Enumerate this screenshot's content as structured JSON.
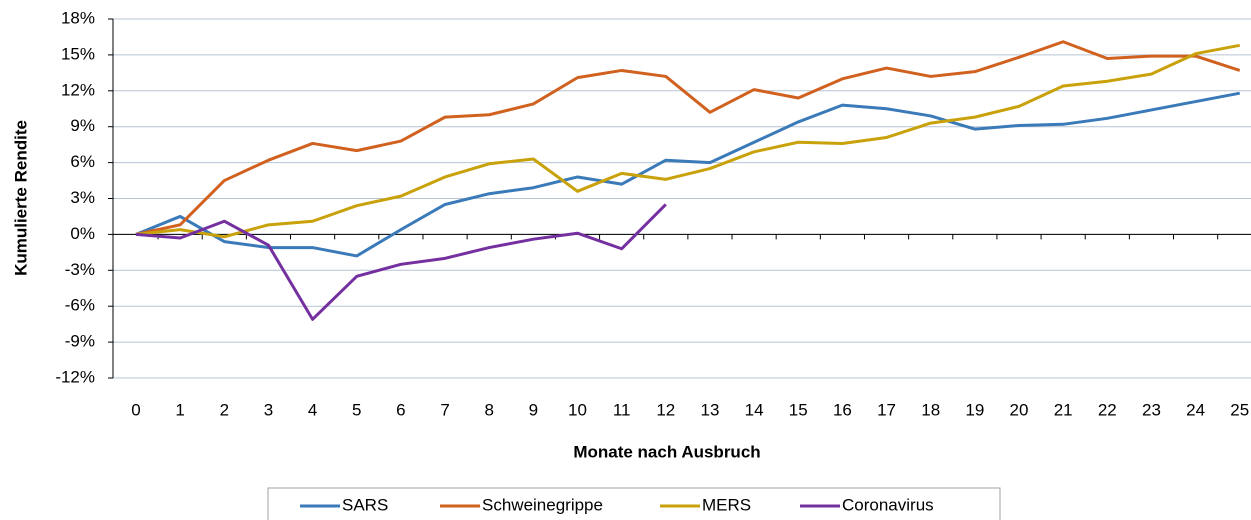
{
  "chart_data": {
    "type": "line",
    "x_label": "Monate nach Ausbruch",
    "y_label": "Kumulierte Rendite",
    "categories": [
      "0",
      "1",
      "2",
      "3",
      "4",
      "5",
      "6",
      "7",
      "8",
      "9",
      "10",
      "11",
      "12",
      "13",
      "14",
      "15",
      "16",
      "17",
      "18",
      "19",
      "20",
      "21",
      "22",
      "23",
      "24",
      "25"
    ],
    "ylim": [
      -12,
      18
    ],
    "yticks": [
      {
        "value": -12,
        "label": "-12%"
      },
      {
        "value": -9,
        "label": "-9%"
      },
      {
        "value": -6,
        "label": "-6%"
      },
      {
        "value": -3,
        "label": "-3%"
      },
      {
        "value": 0,
        "label": "0%"
      },
      {
        "value": 3,
        "label": "3%"
      },
      {
        "value": 6,
        "label": "6%"
      },
      {
        "value": 9,
        "label": "9%"
      },
      {
        "value": 12,
        "label": "12%"
      },
      {
        "value": 15,
        "label": "15%"
      },
      {
        "value": 18,
        "label": "18%"
      }
    ],
    "grid": true,
    "legend": "bottom",
    "series": [
      {
        "name": "SARS",
        "color": "#3a7ab8",
        "values": [
          0,
          1.5,
          -0.6,
          -1.1,
          -1.1,
          -1.8,
          0.4,
          2.5,
          3.4,
          3.9,
          4.8,
          4.2,
          6.2,
          6.0,
          7.7,
          9.4,
          10.8,
          10.5,
          9.9,
          8.8,
          9.1,
          9.2,
          9.7,
          10.4,
          11.1,
          11.8
        ]
      },
      {
        "name": "Schweinegrippe",
        "color": "#d0611f",
        "values": [
          0,
          0.8,
          4.5,
          6.2,
          7.6,
          7.0,
          7.8,
          9.8,
          10.0,
          10.9,
          13.1,
          13.7,
          13.2,
          10.2,
          12.1,
          11.4,
          13.0,
          13.9,
          13.2,
          13.6,
          14.8,
          16.1,
          14.7,
          14.9,
          14.9,
          13.7
        ]
      },
      {
        "name": "MERS",
        "color": "#c9a20b",
        "values": [
          0,
          0.4,
          -0.2,
          0.8,
          1.1,
          2.4,
          3.2,
          4.8,
          5.9,
          6.3,
          3.6,
          5.1,
          4.6,
          5.5,
          6.9,
          7.7,
          7.6,
          8.1,
          9.3,
          9.8,
          10.7,
          12.4,
          12.8,
          13.4,
          15.1,
          15.8
        ]
      },
      {
        "name": "Coronavirus",
        "color": "#7530a0",
        "values": [
          0,
          -0.3,
          1.1,
          -0.9,
          -7.1,
          -3.5,
          -2.5,
          -2.0,
          -1.1,
          -0.4,
          0.1,
          -1.2,
          2.5,
          null,
          null,
          null,
          null,
          null,
          null,
          null,
          null,
          null,
          null,
          null,
          null,
          null
        ]
      }
    ]
  }
}
